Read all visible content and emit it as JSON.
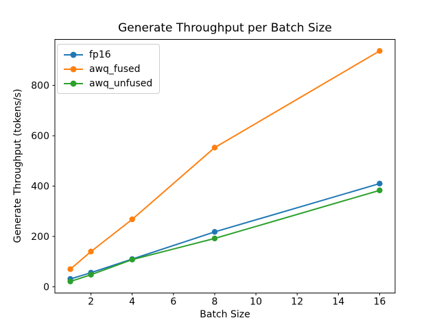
{
  "chart_data": {
    "type": "line",
    "title": "Generate Throughput per Batch Size",
    "xlabel": "Batch Size",
    "ylabel": "Generate Throughput (tokens/s)",
    "x": [
      1,
      2,
      4,
      8,
      16
    ],
    "series": [
      {
        "name": "fp16",
        "color": "#1f77b4",
        "values": [
          31,
          56,
          110,
          218,
          410
        ]
      },
      {
        "name": "awq_fused",
        "color": "#ff7f0e",
        "values": [
          70,
          140,
          268,
          553,
          937
        ]
      },
      {
        "name": "awq_unfused",
        "color": "#2ca02c",
        "values": [
          21,
          48,
          108,
          192,
          383
        ]
      }
    ],
    "xticks": [
      2,
      4,
      6,
      8,
      10,
      12,
      14,
      16
    ],
    "yticks": [
      0,
      200,
      400,
      600,
      800
    ],
    "xlim": [
      0.25,
      16.75
    ],
    "ylim": [
      -24.8,
      982.8
    ],
    "grid": false,
    "legend_position": "upper left",
    "marker": "circle",
    "background_color": "#ffffff",
    "text_color": "#000000",
    "spine_color": "#000000"
  }
}
